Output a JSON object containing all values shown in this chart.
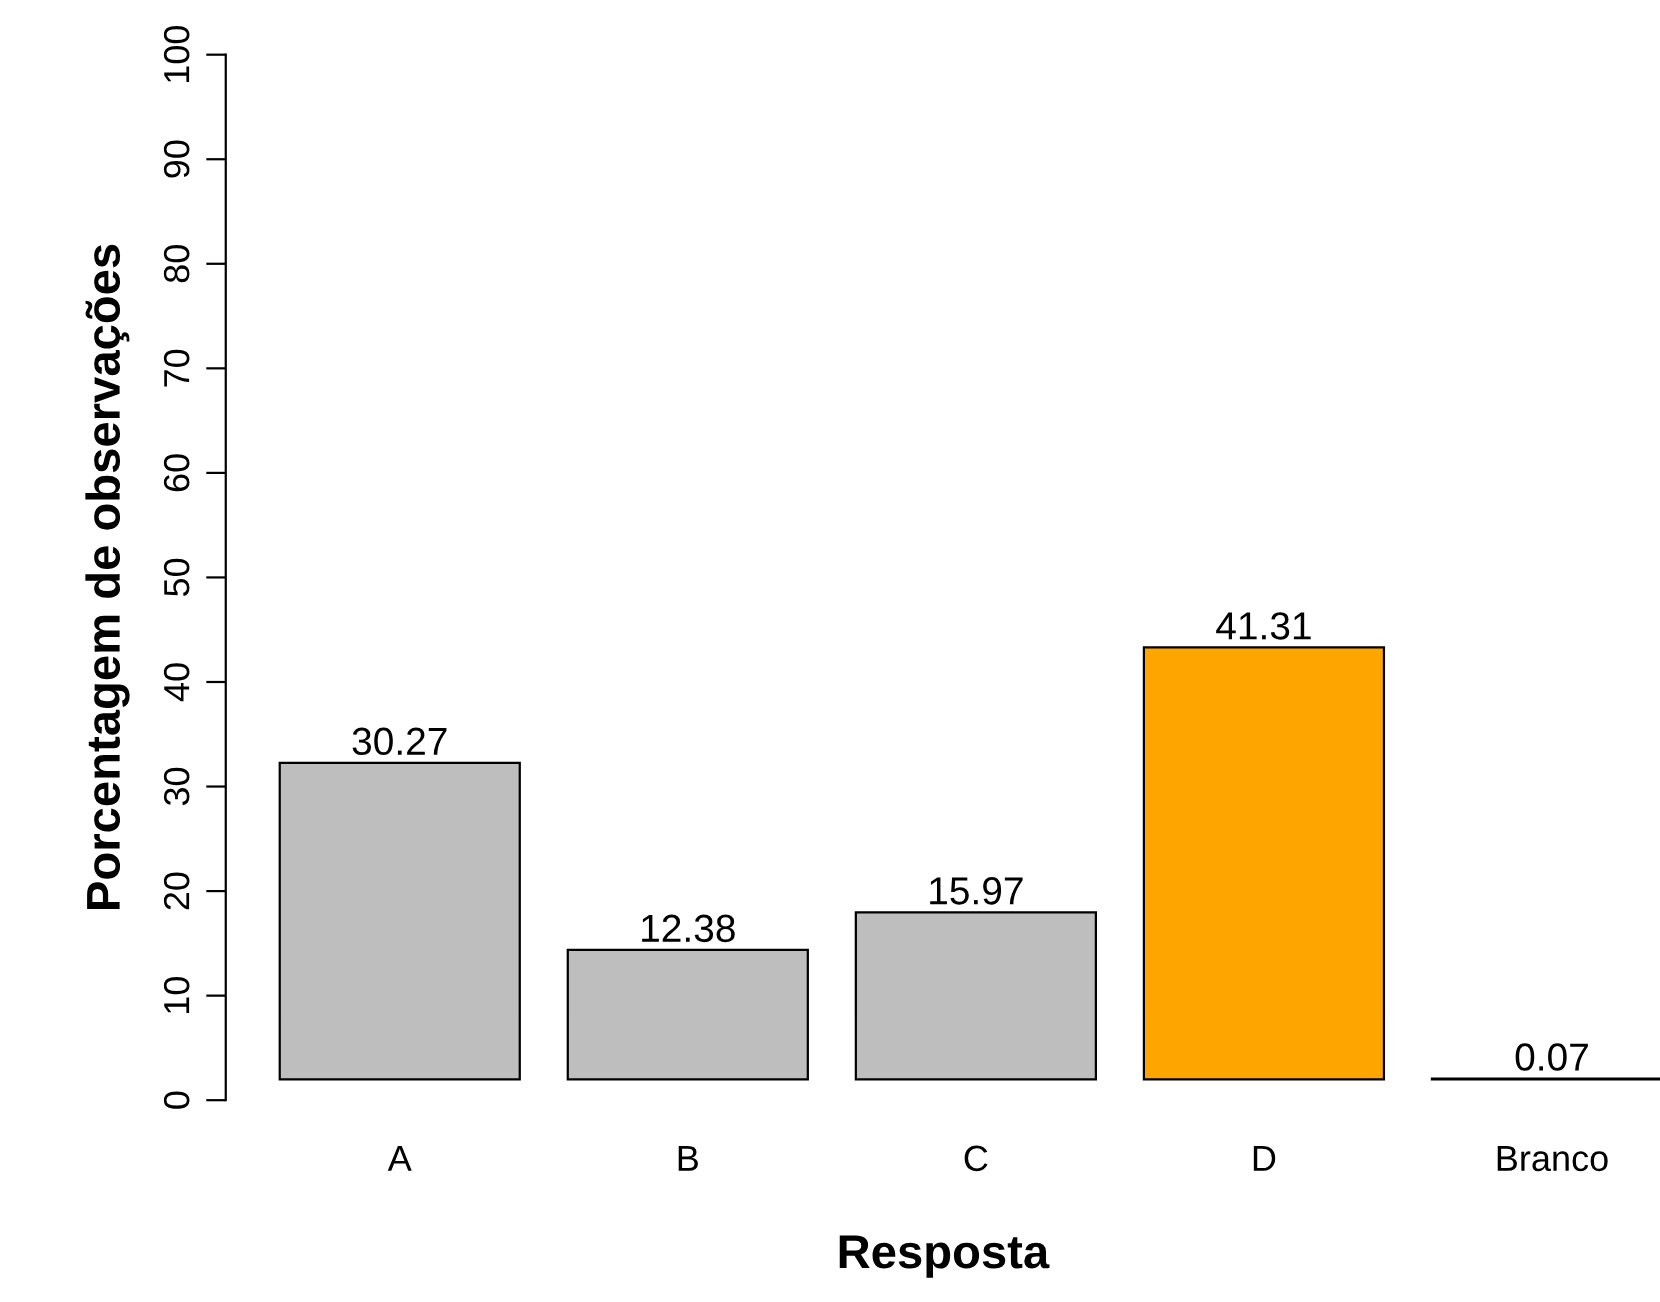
{
  "chart_data": {
    "type": "bar",
    "xlabel": "Resposta",
    "ylabel": "Porcentagem de observações",
    "categories": [
      "A",
      "B",
      "C",
      "D",
      "Branco"
    ],
    "values": [
      30.27,
      12.38,
      15.97,
      41.31,
      0.07
    ],
    "base": [
      2,
      2,
      2,
      2,
      2
    ],
    "colors": [
      "#bebebe",
      "#bebebe",
      "#bebebe",
      "#ffa500",
      "#bebebe"
    ],
    "ylim": [
      0,
      100
    ],
    "yticks": [
      0,
      10,
      20,
      30,
      40,
      50,
      60,
      70,
      80,
      90,
      100
    ],
    "data_labels": true,
    "grid": false,
    "legend": false
  }
}
